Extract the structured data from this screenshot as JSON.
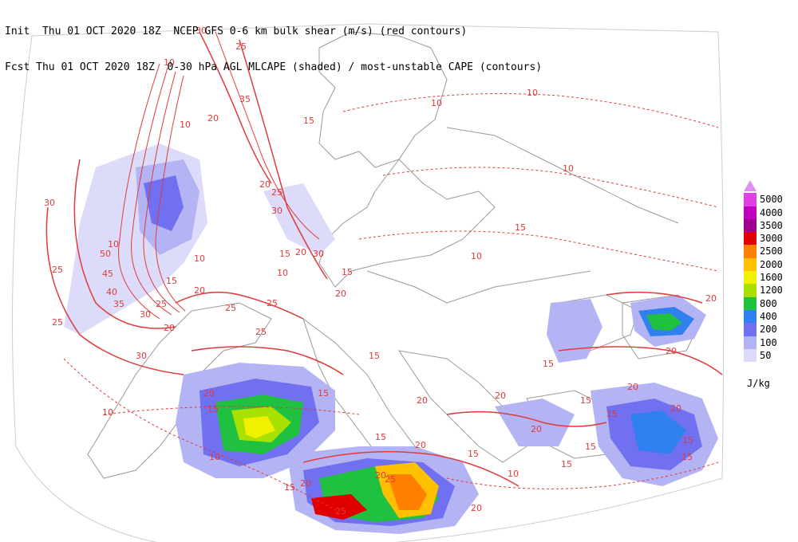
{
  "header": {
    "line1": "Init  Thu 01 OCT 2020 18Z  NCEP GFS 0-6 km bulk shear (m/s) (red contours)",
    "line2": "Fcst Thu 01 OCT 2020 18Z  0-30 hPa AGL MLCAPE (shaded) / most-unstable CAPE (contours)"
  },
  "legend": {
    "units": "J/kg",
    "items": [
      {
        "label": "5000",
        "color": "#e040e0"
      },
      {
        "label": "4000",
        "color": "#c000c0"
      },
      {
        "label": "3500",
        "color": "#a00090"
      },
      {
        "label": "3000",
        "color": "#e00000"
      },
      {
        "label": "2500",
        "color": "#ff8000"
      },
      {
        "label": "2000",
        "color": "#ffc000"
      },
      {
        "label": "1600",
        "color": "#f0f000"
      },
      {
        "label": "1200",
        "color": "#a8e000"
      },
      {
        "label": "800",
        "color": "#20c040"
      },
      {
        "label": "400",
        "color": "#3080f0"
      },
      {
        "label": "200",
        "color": "#7070f0"
      },
      {
        "label": "100",
        "color": "#b4b4f4"
      },
      {
        "label": "50",
        "color": "#dcdcfa"
      }
    ],
    "overflow_color": "#e090f0"
  },
  "contour_labels": [
    "10",
    "15",
    "20",
    "25",
    "30",
    "35",
    "40",
    "45",
    "50"
  ]
}
